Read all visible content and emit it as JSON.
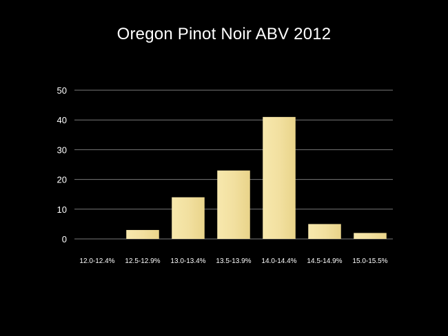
{
  "chart_data": {
    "type": "bar",
    "title": "Oregon Pinot Noir ABV 2012",
    "xlabel": "",
    "ylabel": "",
    "categories": [
      "12.0-12.4%",
      "12.5-12.9%",
      "13.0-13.4%",
      "13.5-13.9%",
      "14.0-14.4%",
      "14.5-14.9%",
      "15.0-15.5%"
    ],
    "values": [
      0,
      3,
      14,
      23,
      41,
      5,
      2
    ],
    "ylim": [
      0,
      50
    ],
    "yticks": [
      "0",
      "10",
      "20",
      "30",
      "40",
      "50"
    ],
    "grid": true,
    "legend": "none",
    "colors": {
      "background": "#000000",
      "bar": "#f2e0a0",
      "bar_gradient_top": "#f7e8ad",
      "bar_gradient_bottom": "#e9d48a",
      "grid": "#7a7a7a",
      "text": "#ffffff"
    }
  }
}
